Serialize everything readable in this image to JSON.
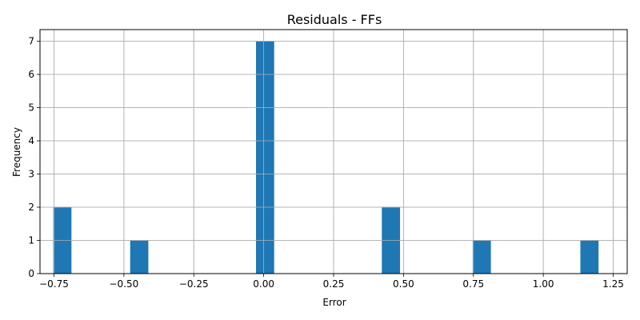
{
  "chart_data": {
    "type": "bar",
    "title": "Residuals - FFs",
    "xlabel": "Error",
    "ylabel": "Frequency",
    "xlim": [
      -0.8,
      1.3
    ],
    "ylim": [
      0,
      7.35
    ],
    "grid": true,
    "bar_color": "#1f77b4",
    "bin_width": 0.065,
    "x": [
      -0.72,
      -0.445,
      0.005,
      0.455,
      0.78,
      1.165
    ],
    "values": [
      2,
      1,
      7,
      2,
      1,
      1
    ],
    "xticks": [
      -0.75,
      -0.5,
      -0.25,
      0.0,
      0.25,
      0.5,
      0.75,
      1.0,
      1.25
    ],
    "xtick_labels": [
      "−0.75",
      "−0.50",
      "−0.25",
      "0.00",
      "0.25",
      "0.50",
      "0.75",
      "1.00",
      "1.25"
    ],
    "yticks": [
      0,
      1,
      2,
      3,
      4,
      5,
      6,
      7
    ],
    "ytick_labels": [
      "0",
      "1",
      "2",
      "3",
      "4",
      "5",
      "6",
      "7"
    ]
  }
}
